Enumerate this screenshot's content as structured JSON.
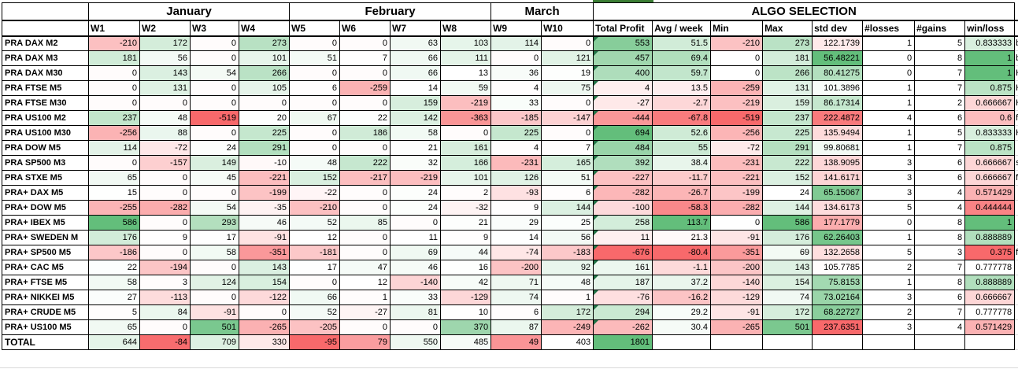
{
  "colors": {
    "scale_red": "#F8696B",
    "scale_green": "#63BE7B",
    "comment_triangle": "#217346",
    "top_border_green": "#3A7D33"
  },
  "header": {
    "months": [
      {
        "label": "January",
        "span": 4
      },
      {
        "label": "February",
        "span": 4
      },
      {
        "label": "March",
        "span": 2
      }
    ],
    "algo_selection": "ALGO SELECTION",
    "week_labels": [
      "W1",
      "W2",
      "W3",
      "W4",
      "W5",
      "W6",
      "W7",
      "W8",
      "W9",
      "W10"
    ],
    "stat_labels": [
      "Total Profit",
      "Avg / week",
      "Min",
      "Max",
      "std dev",
      "#losses",
      "#gains",
      "win/loss"
    ]
  },
  "rows": [
    {
      "name": "PRA DAX M2",
      "weeks": [
        -210,
        172,
        0,
        273,
        0,
        0,
        63,
        103,
        114,
        0
      ],
      "total_profit": 553,
      "avg_week": "51.5",
      "min": -210,
      "max": 273,
      "std_dev": "122.1739",
      "losses": 1,
      "gains": 5,
      "win_loss": "0.833333",
      "overflow": "b"
    },
    {
      "name": "PRA DAX M3",
      "weeks": [
        181,
        56,
        0,
        101,
        51,
        7,
        66,
        111,
        0,
        121
      ],
      "total_profit": 457,
      "avg_week": "69.4",
      "min": 0,
      "max": 181,
      "std_dev": "56.48221",
      "losses": 0,
      "gains": 8,
      "win_loss": "1",
      "overflow": "b"
    },
    {
      "name": "PRA DAX M30",
      "weeks": [
        0,
        143,
        54,
        266,
        0,
        0,
        66,
        13,
        36,
        19
      ],
      "total_profit": 400,
      "avg_week": "59.7",
      "min": 0,
      "max": 266,
      "std_dev": "80.41275",
      "losses": 0,
      "gains": 7,
      "win_loss": "1",
      "overflow": "H"
    },
    {
      "name": "PRA FTSE M5",
      "weeks": [
        0,
        131,
        0,
        105,
        6,
        -259,
        14,
        59,
        4,
        75
      ],
      "total_profit": 4,
      "avg_week": "13.5",
      "min": -259,
      "max": 131,
      "std_dev": "101.3896",
      "losses": 1,
      "gains": 7,
      "win_loss": "0.875",
      "overflow": "H"
    },
    {
      "name": "PRA FTSE M30",
      "weeks": [
        0,
        0,
        0,
        0,
        0,
        0,
        159,
        -219,
        33,
        0
      ],
      "total_profit": -27,
      "avg_week": "-2.7",
      "min": -219,
      "max": 159,
      "std_dev": "86.17314",
      "losses": 1,
      "gains": 2,
      "win_loss": "0.666667",
      "overflow": "H"
    },
    {
      "name": "PRA US100 M2",
      "weeks": [
        237,
        48,
        -519,
        20,
        67,
        22,
        142,
        -363,
        -185,
        -147
      ],
      "total_profit": -444,
      "avg_week": "-67.8",
      "min": -519,
      "max": 237,
      "std_dev": "222.4872",
      "losses": 4,
      "gains": 6,
      "win_loss": "0.6",
      "overflow": "f"
    },
    {
      "name": "PRA US100 M30",
      "weeks": [
        -256,
        88,
        0,
        225,
        0,
        186,
        58,
        0,
        225,
        0
      ],
      "total_profit": 694,
      "avg_week": "52.6",
      "min": -256,
      "max": 225,
      "std_dev": "135.9494",
      "losses": 1,
      "gains": 5,
      "win_loss": "0.833333",
      "overflow": "H"
    },
    {
      "name": "PRA DOW M5",
      "weeks": [
        114,
        -72,
        24,
        291,
        0,
        0,
        21,
        161,
        4,
        7
      ],
      "total_profit": 484,
      "avg_week": "55",
      "min": -72,
      "max": 291,
      "std_dev": "99.80681",
      "losses": 1,
      "gains": 7,
      "win_loss": "0.875",
      "overflow": ""
    },
    {
      "name": "PRA SP500 M3",
      "weeks": [
        0,
        -157,
        149,
        -10,
        48,
        222,
        32,
        166,
        -231,
        165
      ],
      "total_profit": 392,
      "avg_week": "38.4",
      "min": -231,
      "max": 222,
      "std_dev": "138.9095",
      "losses": 3,
      "gains": 6,
      "win_loss": "0.666667",
      "overflow": "s"
    },
    {
      "name": "PRA STXE M5",
      "weeks": [
        65,
        0,
        45,
        -221,
        152,
        -217,
        -219,
        101,
        126,
        51
      ],
      "total_profit": -227,
      "avg_week": "-11.7",
      "min": -221,
      "max": 152,
      "std_dev": "141.6171",
      "losses": 3,
      "gains": 6,
      "win_loss": "0.666667",
      "overflow": "f"
    },
    {
      "name": "PRA+ DAX M5",
      "weeks": [
        15,
        0,
        0,
        -199,
        -22,
        0,
        24,
        2,
        -93,
        6
      ],
      "total_profit": -282,
      "avg_week": "-26.7",
      "min": -199,
      "max": 24,
      "std_dev": "65.15067",
      "losses": 3,
      "gains": 4,
      "win_loss": "0.571429",
      "overflow": ""
    },
    {
      "name": "PRA+ DOW M5",
      "weeks": [
        -255,
        -282,
        54,
        -35,
        -210,
        0,
        24,
        -32,
        9,
        144
      ],
      "total_profit": -100,
      "avg_week": "-58.3",
      "min": -282,
      "max": 144,
      "std_dev": "134.6173",
      "losses": 5,
      "gains": 4,
      "win_loss": "0.444444",
      "overflow": ""
    },
    {
      "name": "PRA+ IBEX M5",
      "weeks": [
        586,
        0,
        293,
        46,
        52,
        85,
        0,
        21,
        29,
        25
      ],
      "total_profit": 258,
      "avg_week": "113.7",
      "min": 0,
      "max": 586,
      "std_dev": "177.1779",
      "losses": 0,
      "gains": 8,
      "win_loss": "1",
      "overflow": ""
    },
    {
      "name": "PRA+ SWEDEN M",
      "weeks": [
        176,
        9,
        17,
        -91,
        12,
        0,
        11,
        9,
        14,
        56
      ],
      "total_profit": 11,
      "avg_week": "21.3",
      "min": -91,
      "max": 176,
      "std_dev": "62.26403",
      "losses": 1,
      "gains": 8,
      "win_loss": "0.888889",
      "overflow": ""
    },
    {
      "name": "PRA+ SP500 M5",
      "weeks": [
        -186,
        0,
        58,
        -351,
        -181,
        0,
        69,
        44,
        -74,
        -183
      ],
      "total_profit": -676,
      "avg_week": "-80.4",
      "min": -351,
      "max": 69,
      "std_dev": "132.2658",
      "losses": 5,
      "gains": 3,
      "win_loss": "0.375",
      "overflow": "f"
    },
    {
      "name": "PRA+ CAC M5",
      "weeks": [
        22,
        -194,
        0,
        143,
        17,
        47,
        46,
        16,
        -200,
        92
      ],
      "total_profit": 161,
      "avg_week": "-1.1",
      "min": -200,
      "max": 143,
      "std_dev": "105.7785",
      "losses": 2,
      "gains": 7,
      "win_loss": "0.777778",
      "overflow": ""
    },
    {
      "name": "PRA+ FTSE M5",
      "weeks": [
        58,
        3,
        124,
        154,
        0,
        12,
        -140,
        42,
        71,
        48
      ],
      "total_profit": 187,
      "avg_week": "37.2",
      "min": -140,
      "max": 154,
      "std_dev": "75.8153",
      "losses": 1,
      "gains": 8,
      "win_loss": "0.888889",
      "overflow": ""
    },
    {
      "name": "PRA+ NIKKEI M5",
      "weeks": [
        27,
        -113,
        0,
        -122,
        66,
        1,
        33,
        -129,
        74,
        1
      ],
      "total_profit": -76,
      "avg_week": "-16.2",
      "min": -129,
      "max": 74,
      "std_dev": "73.02164",
      "losses": 3,
      "gains": 6,
      "win_loss": "0.666667",
      "overflow": ""
    },
    {
      "name": "PRA+ CRUDE M5",
      "weeks": [
        5,
        84,
        -91,
        0,
        52,
        -27,
        81,
        10,
        6,
        172
      ],
      "total_profit": 294,
      "avg_week": "29.2",
      "min": -91,
      "max": 172,
      "std_dev": "68.22727",
      "losses": 2,
      "gains": 7,
      "win_loss": "0.777778",
      "overflow": ""
    },
    {
      "name": "PRA+ US100 M5",
      "weeks": [
        65,
        0,
        501,
        -265,
        -205,
        0,
        0,
        370,
        87,
        -249
      ],
      "total_profit": -262,
      "avg_week": "30.4",
      "min": -265,
      "max": 501,
      "std_dev": "237.6351",
      "losses": 3,
      "gains": 4,
      "win_loss": "0.571429",
      "overflow": ""
    }
  ],
  "total_row": {
    "name": "TOTAL",
    "weeks": [
      644,
      -84,
      709,
      330,
      -95,
      79,
      550,
      485,
      49,
      403
    ],
    "total_profit": 1801
  }
}
